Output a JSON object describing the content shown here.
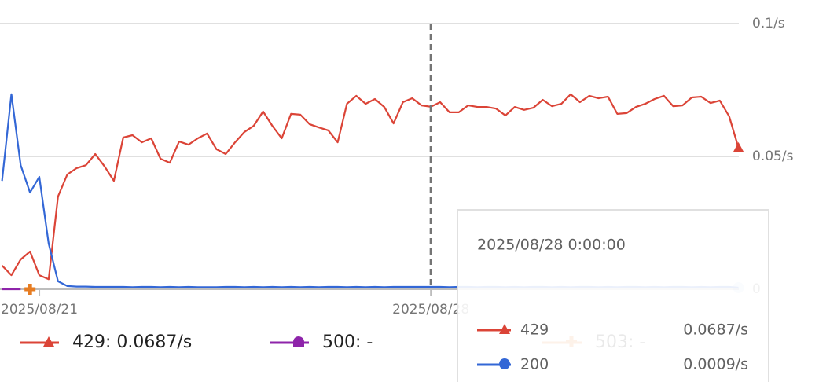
{
  "chart_data": {
    "type": "line",
    "categories": [
      null,
      null,
      null,
      null,
      "2025/08/21",
      null,
      null,
      null,
      null,
      null,
      null,
      null,
      null,
      null,
      null,
      null,
      null,
      null,
      null,
      null,
      null,
      null,
      null,
      null,
      null,
      null,
      null,
      null,
      null,
      null,
      null,
      null,
      null,
      null,
      null,
      null,
      null,
      null,
      null,
      null,
      null,
      null,
      null,
      null,
      null,
      null,
      "2025/08/28",
      null,
      null,
      null,
      null,
      null,
      null,
      null,
      null,
      null,
      null,
      null,
      null,
      null,
      null,
      null,
      null,
      null,
      null,
      null,
      null,
      null,
      null,
      null,
      null,
      null,
      null,
      null,
      null,
      null,
      null,
      null,
      null,
      null
    ],
    "series": [
      {
        "name": "429",
        "color": "#db4437",
        "marker": "triangle",
        "legend_label": "429: 0.0687/s",
        "values": [
          0.0089,
          0.0053,
          0.0112,
          0.0142,
          0.0053,
          0.0038,
          0.0349,
          0.0432,
          0.0456,
          0.0467,
          0.0509,
          0.0462,
          0.0408,
          0.0571,
          0.058,
          0.0553,
          0.0568,
          0.0491,
          0.0476,
          0.0556,
          0.0544,
          0.0568,
          0.0586,
          0.0527,
          0.0509,
          0.0553,
          0.0592,
          0.0615,
          0.0669,
          0.0615,
          0.0568,
          0.066,
          0.0657,
          0.0621,
          0.0609,
          0.0598,
          0.0553,
          0.0698,
          0.0728,
          0.0698,
          0.0716,
          0.0686,
          0.0624,
          0.0704,
          0.0719,
          0.0692,
          0.0687,
          0.0704,
          0.0666,
          0.0666,
          0.0692,
          0.0686,
          0.0686,
          0.068,
          0.0654,
          0.0686,
          0.0675,
          0.0683,
          0.0713,
          0.0689,
          0.0698,
          0.0734,
          0.0704,
          0.0728,
          0.0719,
          0.0725,
          0.066,
          0.0663,
          0.0686,
          0.0698,
          0.0716,
          0.0728,
          0.0689,
          0.0692,
          0.0722,
          0.0725,
          0.0701,
          0.071,
          0.0651,
          0.0533
        ]
      },
      {
        "name": "200",
        "color": "#3367d6",
        "marker": "circle",
        "values": [
          0.0408,
          0.0734,
          0.0467,
          0.0364,
          0.0423,
          0.0172,
          0.003,
          0.0012,
          0.001,
          0.001,
          0.0009,
          0.0009,
          0.0009,
          0.0009,
          0.0008,
          0.0009,
          0.0009,
          0.0008,
          0.0009,
          0.0008,
          0.0009,
          0.0008,
          0.0008,
          0.0008,
          0.0009,
          0.0009,
          0.0008,
          0.0009,
          0.0008,
          0.0009,
          0.0008,
          0.0009,
          0.0008,
          0.0009,
          0.0008,
          0.0009,
          0.0009,
          0.0008,
          0.0009,
          0.0008,
          0.0009,
          0.0008,
          0.0009,
          0.0009,
          0.0009,
          0.0009,
          0.0009,
          0.0009,
          0.0008,
          0.0009,
          0.0009,
          0.0008,
          0.0009,
          0.0009,
          0.0008,
          0.0009,
          0.0008,
          0.0009,
          0.0009,
          0.0008,
          0.0009,
          0.0008,
          0.0009,
          0.0009,
          0.0008,
          0.0009,
          0.0008,
          0.0009,
          0.0009,
          0.0008,
          0.0009,
          0.0008,
          0.0009,
          0.0009,
          0.0008,
          0.0009,
          0.0008,
          0.0009,
          0.0009,
          0.0006
        ]
      },
      {
        "name": "500",
        "color": "#8e24aa",
        "marker": "half-circle",
        "legend_label": "500: -",
        "values": [
          0,
          0,
          0,
          null,
          0,
          null,
          null,
          null,
          null,
          null,
          null,
          null,
          null,
          null,
          null,
          null,
          null,
          null,
          null,
          null,
          null,
          null,
          null,
          null,
          null,
          null,
          null,
          null,
          null,
          null,
          null,
          null,
          null,
          null,
          null,
          null,
          null,
          null,
          null,
          null,
          null,
          null,
          null,
          null,
          null,
          null,
          null,
          null,
          null,
          null,
          null,
          null,
          null,
          null,
          null,
          null,
          null,
          null,
          null,
          null,
          null,
          null,
          null,
          null,
          null,
          null,
          null,
          null,
          null,
          null,
          null,
          null,
          null,
          null,
          null,
          null,
          null,
          null,
          null,
          null
        ]
      },
      {
        "name": "503",
        "color": "#e67c22",
        "marker": "plus",
        "legend_label": "503: -",
        "values": [
          null,
          null,
          null,
          0,
          null,
          null,
          null,
          null,
          null,
          null,
          null,
          null,
          null,
          null,
          null,
          null,
          null,
          null,
          null,
          null,
          null,
          null,
          null,
          null,
          null,
          null,
          null,
          null,
          null,
          null,
          null,
          null,
          null,
          null,
          null,
          null,
          null,
          null,
          null,
          null,
          null,
          null,
          null,
          null,
          null,
          null,
          null,
          null,
          null,
          null,
          null,
          null,
          null,
          null,
          null,
          null,
          null,
          null,
          null,
          null,
          null,
          null,
          null,
          null,
          null,
          null,
          null,
          null,
          null,
          null,
          null,
          null,
          null,
          null,
          null,
          null,
          null,
          null,
          null,
          null
        ]
      }
    ],
    "ylim": [
      0,
      0.1
    ],
    "yticks": [
      0,
      {
        "value": 0.05,
        "label": "0.05/s"
      },
      {
        "value": 0.1,
        "label": "0.1/s"
      }
    ],
    "grid": true,
    "tooltip": {
      "title": "2025/08/28 0:00:00",
      "rows": [
        {
          "name": "429",
          "value_label": "0.0687/s"
        },
        {
          "name": "200",
          "value_label": "0.0009/s"
        }
      ]
    }
  }
}
